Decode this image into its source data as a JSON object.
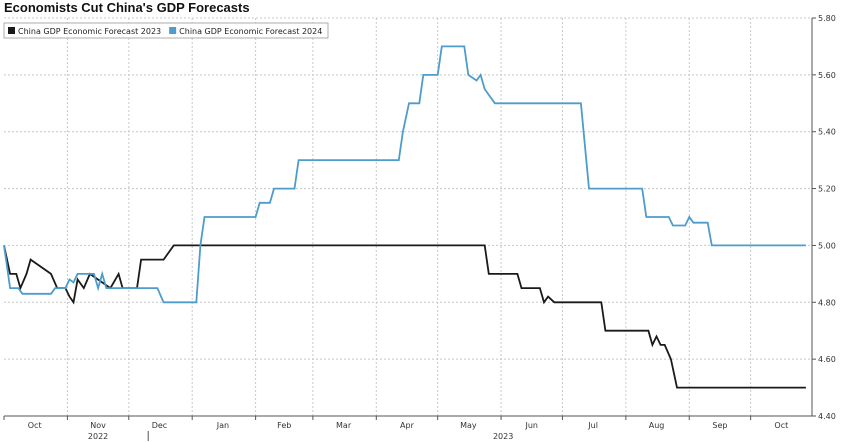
{
  "title": "Economists Cut China's GDP Forecasts",
  "chart_data": {
    "type": "line",
    "title": "Economists Cut China's GDP Forecasts",
    "xlabel": "",
    "ylabel": "",
    "ylim": [
      4.4,
      5.8
    ],
    "yticks": [
      "5.80",
      "5.60",
      "5.40",
      "5.20",
      "5.00",
      "4.80",
      "4.60",
      "4.40"
    ],
    "xlim": [
      "2022-10-01",
      "2023-10-31"
    ],
    "month_labels": [
      "Oct",
      "Nov",
      "Dec",
      "Jan",
      "Feb",
      "Mar",
      "Apr",
      "May",
      "Jun",
      "Jul",
      "Aug",
      "Sep",
      "Oct"
    ],
    "year_labels": [
      "2022",
      "2023"
    ],
    "grid": true,
    "legend_position": "top-left",
    "series": [
      {
        "name": "China GDP Economic Forecast 2023",
        "color": "#1a1a1a",
        "points": [
          [
            "2022-10-01",
            5.0
          ],
          [
            "2022-10-04",
            4.9
          ],
          [
            "2022-10-07",
            4.9
          ],
          [
            "2022-10-09",
            4.85
          ],
          [
            "2022-10-12",
            4.9
          ],
          [
            "2022-10-14",
            4.95
          ],
          [
            "2022-10-24",
            4.9
          ],
          [
            "2022-10-27",
            4.85
          ],
          [
            "2022-10-31",
            4.85
          ],
          [
            "2022-11-02",
            4.82
          ],
          [
            "2022-11-04",
            4.8
          ],
          [
            "2022-11-06",
            4.88
          ],
          [
            "2022-11-09",
            4.85
          ],
          [
            "2022-11-12",
            4.9
          ],
          [
            "2022-11-22",
            4.85
          ],
          [
            "2022-11-26",
            4.9
          ],
          [
            "2022-11-28",
            4.85
          ],
          [
            "2022-12-05",
            4.85
          ],
          [
            "2022-12-07",
            4.95
          ],
          [
            "2022-12-18",
            4.95
          ],
          [
            "2022-12-20",
            4.97
          ],
          [
            "2022-12-23",
            5.0
          ],
          [
            "2023-05-24",
            5.0
          ],
          [
            "2023-05-26",
            4.9
          ],
          [
            "2023-06-09",
            4.9
          ],
          [
            "2023-06-11",
            4.85
          ],
          [
            "2023-06-20",
            4.85
          ],
          [
            "2023-06-22",
            4.8
          ],
          [
            "2023-06-24",
            4.82
          ],
          [
            "2023-06-27",
            4.8
          ],
          [
            "2023-07-20",
            4.8
          ],
          [
            "2023-07-22",
            4.7
          ],
          [
            "2023-08-12",
            4.7
          ],
          [
            "2023-08-14",
            4.65
          ],
          [
            "2023-08-16",
            4.68
          ],
          [
            "2023-08-18",
            4.65
          ],
          [
            "2023-08-20",
            4.65
          ],
          [
            "2023-08-23",
            4.6
          ],
          [
            "2023-08-26",
            4.5
          ],
          [
            "2023-10-28",
            4.5
          ]
        ]
      },
      {
        "name": "China GDP Economic Forecast 2024",
        "color": "#4d9ccc",
        "points": [
          [
            "2022-10-01",
            5.0
          ],
          [
            "2022-10-04",
            4.85
          ],
          [
            "2022-10-08",
            4.85
          ],
          [
            "2022-10-10",
            4.83
          ],
          [
            "2022-10-24",
            4.83
          ],
          [
            "2022-10-26",
            4.85
          ],
          [
            "2022-10-31",
            4.85
          ],
          [
            "2022-11-02",
            4.88
          ],
          [
            "2022-11-04",
            4.87
          ],
          [
            "2022-11-06",
            4.9
          ],
          [
            "2022-11-14",
            4.9
          ],
          [
            "2022-11-16",
            4.85
          ],
          [
            "2022-11-18",
            4.9
          ],
          [
            "2022-11-20",
            4.85
          ],
          [
            "2022-12-15",
            4.85
          ],
          [
            "2022-12-18",
            4.8
          ],
          [
            "2023-01-03",
            4.8
          ],
          [
            "2023-01-05",
            5.0
          ],
          [
            "2023-01-07",
            5.1
          ],
          [
            "2023-02-01",
            5.1
          ],
          [
            "2023-02-03",
            5.15
          ],
          [
            "2023-02-08",
            5.15
          ],
          [
            "2023-02-10",
            5.2
          ],
          [
            "2023-02-20",
            5.2
          ],
          [
            "2023-02-22",
            5.3
          ],
          [
            "2023-04-12",
            5.3
          ],
          [
            "2023-04-14",
            5.4
          ],
          [
            "2023-04-17",
            5.5
          ],
          [
            "2023-04-22",
            5.5
          ],
          [
            "2023-04-24",
            5.6
          ],
          [
            "2023-05-01",
            5.6
          ],
          [
            "2023-05-03",
            5.7
          ],
          [
            "2023-05-14",
            5.7
          ],
          [
            "2023-05-16",
            5.6
          ],
          [
            "2023-05-20",
            5.58
          ],
          [
            "2023-05-22",
            5.6
          ],
          [
            "2023-05-24",
            5.55
          ],
          [
            "2023-05-29",
            5.5
          ],
          [
            "2023-07-10",
            5.5
          ],
          [
            "2023-07-14",
            5.2
          ],
          [
            "2023-08-09",
            5.2
          ],
          [
            "2023-08-11",
            5.1
          ],
          [
            "2023-08-22",
            5.1
          ],
          [
            "2023-08-24",
            5.07
          ],
          [
            "2023-08-30",
            5.07
          ],
          [
            "2023-09-01",
            5.1
          ],
          [
            "2023-09-03",
            5.08
          ],
          [
            "2023-09-10",
            5.08
          ],
          [
            "2023-09-12",
            5.0
          ],
          [
            "2023-10-28",
            5.0
          ]
        ]
      }
    ]
  }
}
